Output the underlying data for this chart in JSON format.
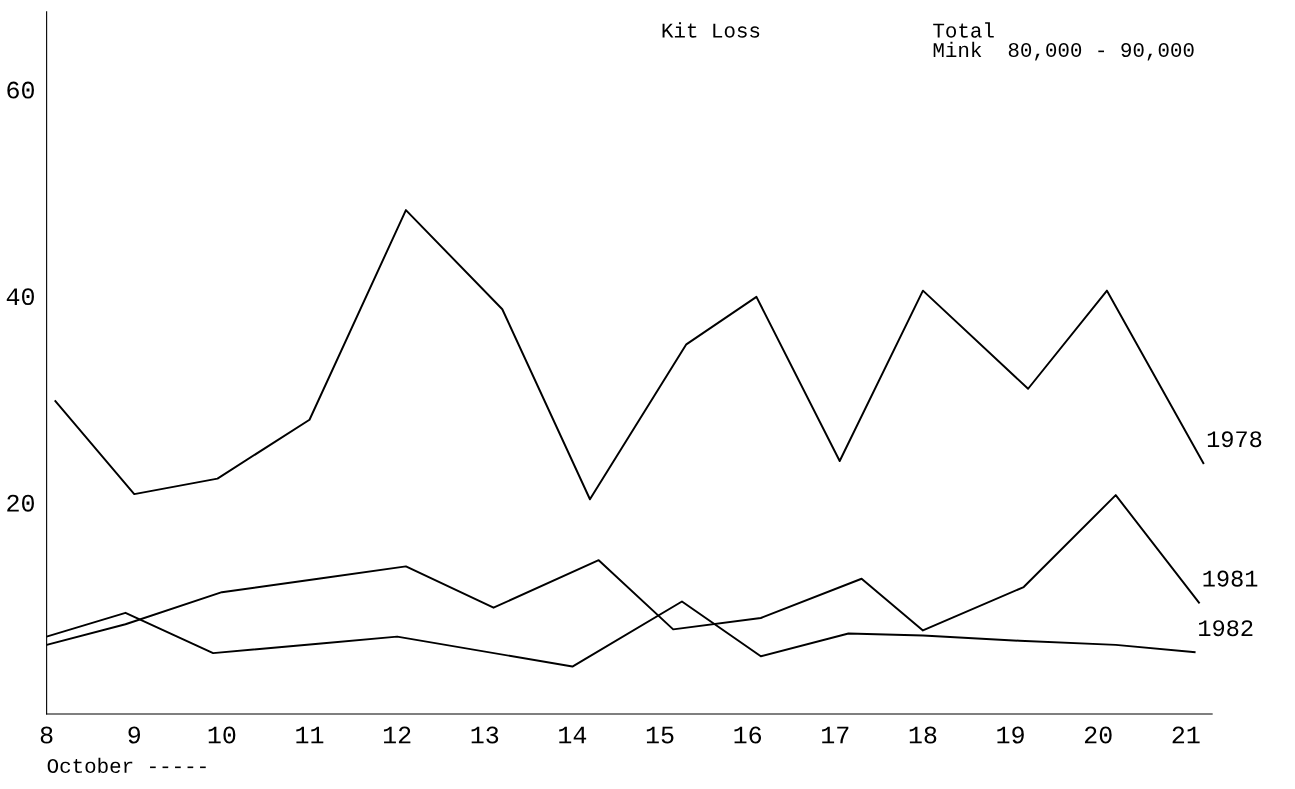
{
  "chart_data": {
    "type": "line",
    "title": "Kit Loss",
    "xlabel": "October -----",
    "annotations": [
      "Total\nMink  80,000 - 90,000"
    ],
    "xlim": [
      8,
      21.3
    ],
    "ylim": [
      -0.5,
      67.5
    ],
    "xticks": [
      8,
      9,
      10,
      11,
      12,
      13,
      14,
      15,
      16,
      17,
      18,
      19,
      20,
      21
    ],
    "yticks": [
      20,
      40,
      60
    ],
    "grid": false,
    "legend": false,
    "marker": "none",
    "line_style": "solid",
    "series": [
      {
        "name": "1978",
        "color": "#000000",
        "x": [
          8.1,
          9,
          9.95,
          11,
          12.1,
          13.2,
          14.2,
          15.3,
          16.1,
          17.05,
          18,
          19.2,
          20.1,
          21.2
        ],
        "values": [
          29.8,
          20.8,
          22.3,
          28.0,
          48.3,
          38.7,
          20.3,
          35.3,
          39.9,
          24.0,
          40.5,
          31.0,
          40.5,
          23.8
        ]
      },
      {
        "name": "1981",
        "color": "#000000",
        "x": [
          8,
          8.9,
          10,
          11.1,
          12.1,
          13.1,
          14.3,
          15.15,
          16.15,
          17.3,
          18,
          19.15,
          20.2,
          21.15
        ],
        "values": [
          6.2,
          8.2,
          11.3,
          12.6,
          13.8,
          9.8,
          14.4,
          7.7,
          8.8,
          12.6,
          7.6,
          11.8,
          20.7,
          10.3
        ]
      },
      {
        "name": "1982",
        "color": "#000000",
        "x": [
          8,
          8.9,
          9.9,
          11.1,
          12,
          14,
          15.25,
          16.15,
          17.15,
          18,
          19.1,
          20.2,
          21.1
        ],
        "values": [
          7.0,
          9.3,
          5.4,
          6.3,
          7.0,
          4.1,
          10.4,
          5.1,
          7.3,
          7.1,
          6.6,
          6.2,
          5.5
        ]
      }
    ]
  }
}
